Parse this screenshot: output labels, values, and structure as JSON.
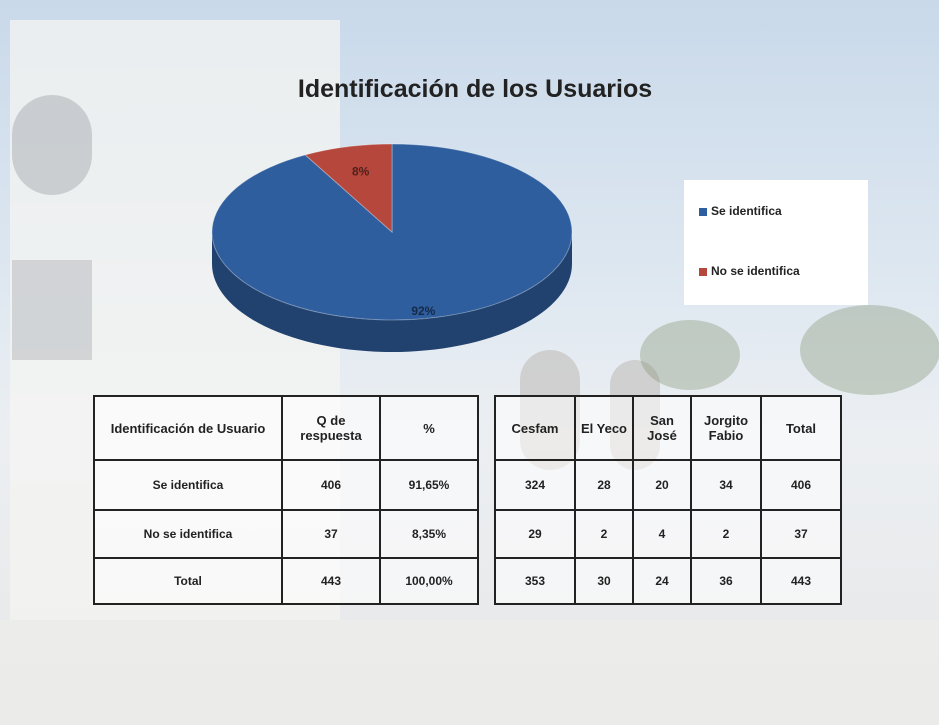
{
  "chart_data": {
    "type": "pie",
    "title": "Identificación de los Usuarios",
    "categories": [
      "Se identifica",
      "No se identifica"
    ],
    "values": [
      92,
      8
    ],
    "value_labels": [
      "92%",
      "8%"
    ],
    "colors": [
      "#2f5e9e",
      "#b5473c"
    ],
    "legend": "right"
  },
  "tables": [
    {
      "header": [
        "Identificación de Usuario",
        "Q de respuesta",
        "%"
      ],
      "rows": [
        [
          "Se identifica",
          "406",
          "91,65%"
        ],
        [
          "No se identifica",
          "37",
          "8,35%"
        ],
        [
          "Total",
          "443",
          "100,00%"
        ]
      ]
    },
    {
      "header": [
        "Cesfam",
        "El Yeco",
        "San José",
        "Jorgito Fabio",
        "Total"
      ],
      "rows": [
        [
          "324",
          "28",
          "20",
          "34",
          "406"
        ],
        [
          "29",
          "2",
          "4",
          "2",
          "37"
        ],
        [
          "353",
          "30",
          "24",
          "36",
          "443"
        ]
      ]
    }
  ]
}
